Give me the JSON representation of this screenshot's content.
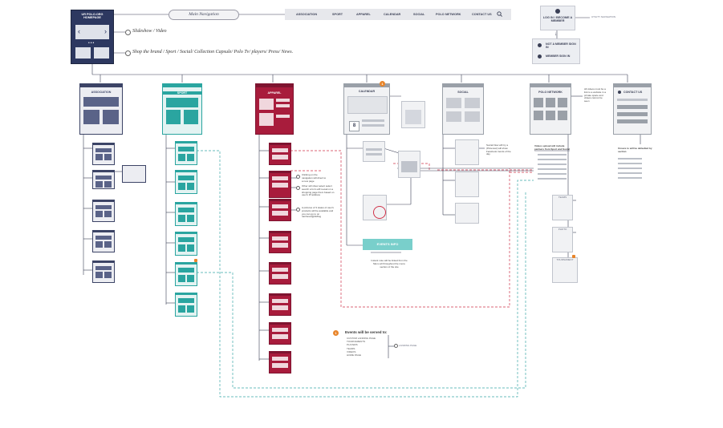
{
  "homepage": {
    "title": "UR POLO.ORG HOMEPAGE",
    "note_slideshow": "Slideshow / Video",
    "note_shop": "Shop the brand / Sport / Social/ Collection Capsule/ Polo Tv/ players/ Press/ News."
  },
  "main_nav": {
    "pill_label": "Main Navigation",
    "items": [
      "ASSOCIATION",
      "SPORT",
      "APPAREL",
      "CALENDAR",
      "SOCIAL",
      "POLO NETWORK",
      "CONTACT US"
    ],
    "search_icon": "search-icon"
  },
  "account": {
    "login_label": "LOG IN / BECOME A MEMBER",
    "utility_note": "UTILITY NAVIGATION",
    "not_member_label": "NOT A MEMBER SIGN IN",
    "member_signin_label": "MEMBER SIGN IN"
  },
  "sections": [
    {
      "key": "association",
      "title": "ASSOCIATION",
      "color": "#3c4466",
      "children": [
        "",
        "",
        "",
        "",
        ""
      ]
    },
    {
      "key": "sport",
      "title": "SPORT",
      "color": "#2aa5a0",
      "children": [
        "",
        "",
        "",
        "",
        "",
        ""
      ]
    },
    {
      "key": "apparel",
      "title": "APPAREL",
      "color": "#a81c3c",
      "children": [
        "",
        "",
        "",
        "",
        "",
        "",
        "",
        "",
        ""
      ]
    },
    {
      "key": "calendar",
      "title": "CALENDAR",
      "color": "#9aa0a8",
      "children": []
    },
    {
      "key": "social",
      "title": "SOCIAL",
      "color": "#9aa0a8",
      "children": []
    },
    {
      "key": "polo_network",
      "title": "POLO NETWORK",
      "color": "#9aa0a8",
      "children": []
    },
    {
      "key": "contact_us",
      "title": "CONTACT US",
      "color": "#9aa0a8",
      "children": []
    }
  ],
  "calendar": {
    "date_digit": "8",
    "button_label": "EVENTS INFO",
    "note_below": "Instant note will be linked from the Menu all throughout the menu section of the site"
  },
  "apparel_notes": [
    "Clicking on the navigation will direct to a new page",
    "Other will show select select search a form will reveal on a shopping page them based on user's IP address",
    "A pictures of 3 states of user's products will be available and you can go to on rainforest@AMlog"
  ],
  "social_note": "Social Flow will try a (Pinterest) will show Facebook trends of the day",
  "polo_network": {
    "note_right": "All videos must be a link to a website in a private space and videos cannot be seen",
    "list_title": "Videos upload will include partners from Sport and Social",
    "list_items": [
      "",
      "",
      "",
      "",
      "",
      ""
    ],
    "tile_labels": [
      "TEAMS",
      "PHOTO",
      "TOURNAMENT"
    ]
  },
  "contact": {
    "note_title": "Unsure to will be defaulted by section",
    "items": [
      "",
      "",
      "",
      "",
      ""
    ]
  },
  "events_legend": {
    "badge": "1",
    "title": "Events will be served to:",
    "items": [
      "CUSTOM LANDING PAGE",
      "TOURNAMENTS",
      "PLAYERS",
      "TEAMS",
      "VIDEOS",
      "HOME PAGE"
    ],
    "right_label": "LANDING PAGE"
  },
  "colors": {
    "navy": "#3c4466",
    "teal": "#2aa5a0",
    "crimson": "#a81c3c",
    "gray": "#9aa0a8",
    "orange": "#e8852a",
    "red_dash": "#d0334a",
    "teal_dash": "#3aa8a8"
  }
}
